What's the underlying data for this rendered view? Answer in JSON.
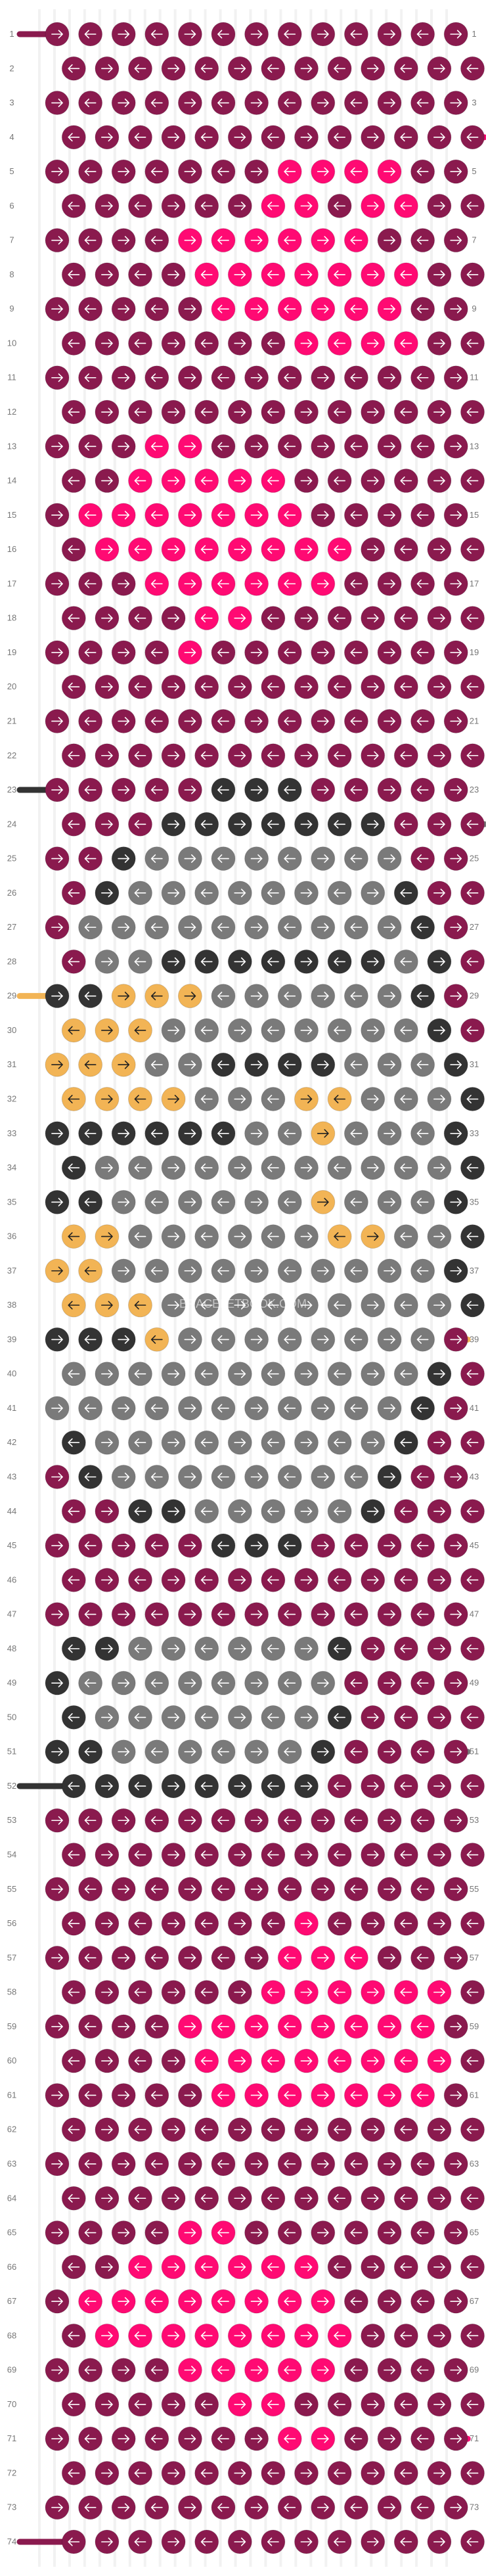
{
  "pattern": {
    "rows": 74,
    "strings": 13,
    "row_number_start": 1,
    "watermark": "BRACELETBOOK.COM"
  },
  "colors": {
    "A": "#8a1a4e",
    "B": "#ff0a73",
    "C": "#333333",
    "D": "#7a7a7a",
    "E": "#f2b455",
    "string_white": "#f2f2f2",
    "row_number": "#777777",
    "background": "#ffffff"
  },
  "grid": [
    "AAAAAAAAAAAAA",
    "AAAAAAAAAAAAA",
    "AAAAAAAAAAAAA",
    "AAAAAAAAAAAAA",
    "AAAAAAABBBBAA",
    "AAAAAABBABBAA",
    "AAAABBBBBBAAA",
    "AAAABBBBBBBAA",
    "AAAAABBBBBBAA",
    "AAAAAAABBBBAA",
    "AAAAAAAAAAAAA",
    "AAAAAAAAAAAAA",
    "AAABBAAAAAAAA",
    "AABBBBBAAAAAA",
    "ABBBBBBBAAAAA",
    "ABBBBBBBBAAAA",
    "AAABBBBBBAAAA",
    "AAAABBAAAAAAA",
    "AAAABAAAAAAAA",
    "AAAAAAAAAAAAA",
    "AAAAAAAAAAAAA",
    "AAAAAAAAAAAAA",
    "AAAAACCCAAAAA",
    "AAACCCCCCCAAA",
    "AACDDDDDDDDAA",
    "ACDDDDDDDDCAA",
    "ADDDDDDDDDDCA",
    "ADDCCCCCCCDCA",
    "CCEEEDDDDDDCA",
    "EEEDDDDDDDDCA",
    "EEEDDCCCCDDDC",
    "EEEEDDDEEDDDC",
    "CCCCCCDDEDDDC",
    "CDDDDDDDDDDDC",
    "CCDDDDDDEDDDC",
    "EEDDDDDDEEDDC",
    "EEDDDDDDDDDDC",
    "EEEDDDDDDDDDC",
    "CCCEDDDDDDDDA",
    "DDDDDDDDDDDCA",
    "DDDDDDDDDDDCA",
    "CDDDDDDDDDCAA",
    "ACDDDDDDDDCAA",
    "AACCDDDDDCAAA",
    "AAAAACCCAAAAA",
    "AAAAAAAAAAAAA",
    "AAAAAAAAAAAAA",
    "CCDDDDDDCAAAA",
    "CDDDDDDDDAAAA",
    "CDDDDDDDCAAAA",
    "CCDDDDDDCAAAA",
    "CCCCCCCCAAAAA",
    "AAAAAAAAAAAAA",
    "AAAAAAAAAAAAA",
    "AAAAAAAAAAAAA",
    "AAAAAAABAAAAA",
    "AAAAAAABBBAAA",
    "AAAAAABBBBBBA",
    "AAAABBBBBBBBA",
    "AAAABBBBBBBBA",
    "AAAAABBBBBBBA",
    "AAAAAAAAAAAAA",
    "AAAAAAAAAAAAA",
    "AAAAAAAAAAAAA",
    "AAAABBAAAAAAA",
    "AABBBBBBAAAAA",
    "ABBBBBBBBAAAA",
    "ABBBBBBBBAAAA",
    "AAAABBBBBAAAA",
    "AAAAABBAAAAAA",
    "AAAAAAABBAAAA",
    "AAAAAAAAAAAAA",
    "AAAAAAAAAAAAA",
    "AAAAAAAAAAAAA"
  ],
  "side_strings": [
    {
      "row": 1,
      "side": "left",
      "color": "A"
    },
    {
      "row": 4,
      "side": "right",
      "color": "B"
    },
    {
      "row": 23,
      "side": "left",
      "color": "C"
    },
    {
      "row": 24,
      "side": "right",
      "color": "D"
    },
    {
      "row": 29,
      "side": "left",
      "color": "E"
    },
    {
      "row": 39,
      "side": "right",
      "color": "E"
    },
    {
      "row": 51,
      "side": "right",
      "color": "D"
    },
    {
      "row": 52,
      "side": "left",
      "color": "C"
    },
    {
      "row": 71,
      "side": "right",
      "color": "B"
    },
    {
      "row": 74,
      "side": "left",
      "color": "A"
    }
  ]
}
